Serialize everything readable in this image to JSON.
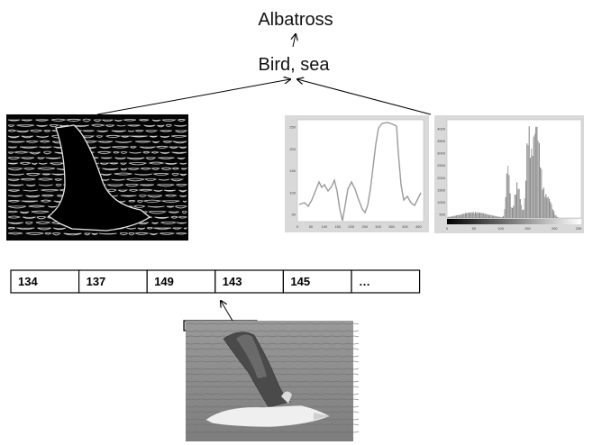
{
  "labels": {
    "top": "Albatross",
    "middle": "Bird, sea"
  },
  "pixel_row": {
    "values": [
      "134",
      "137",
      "149",
      "143",
      "145",
      "…"
    ]
  },
  "profile_plot": {
    "y_ticks": [
      "250",
      "200",
      "150",
      "100",
      "50"
    ],
    "x_ticks": [
      "0",
      "50",
      "100",
      "150",
      "200",
      "250",
      "300",
      "350",
      "400",
      "450"
    ]
  },
  "histogram_plot": {
    "y_ticks": [
      "4000",
      "3500",
      "3000",
      "2500",
      "2000",
      "1500",
      "1000",
      "500"
    ],
    "x_ticks": [
      "0",
      "50",
      "100",
      "150",
      "200",
      "250"
    ]
  },
  "colors": {
    "line": "#000000",
    "plot_bg": "#d9d9d9",
    "plot_line": "#9a9a9a",
    "selection_bar": "#bdbdbd"
  }
}
